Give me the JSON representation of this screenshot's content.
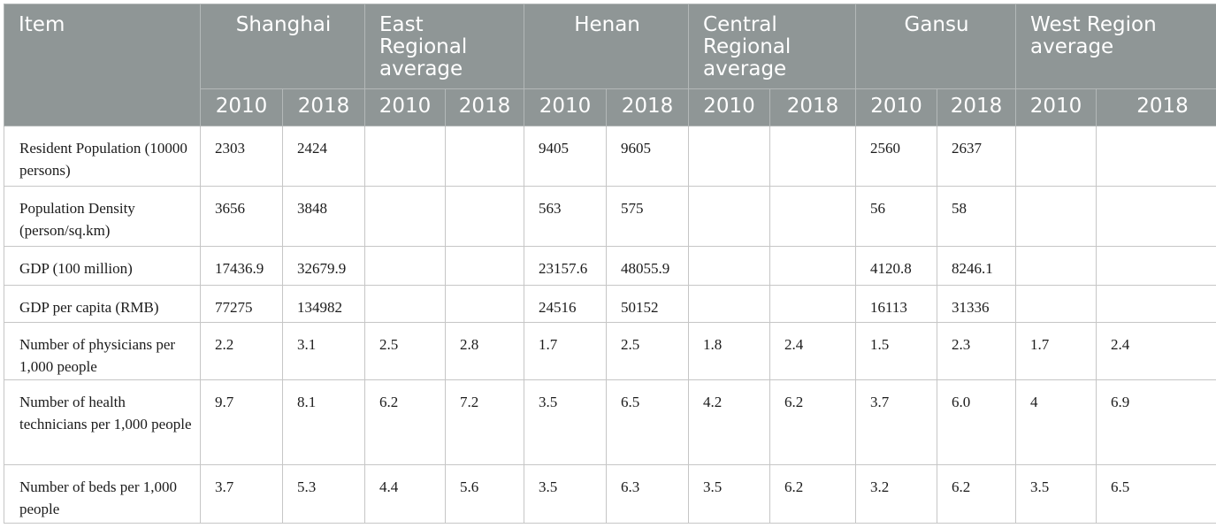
{
  "header": {
    "item_label": "Item",
    "groups": [
      "Shanghai",
      "East Regional average",
      "Henan",
      "Central Regional average",
      "Gansu",
      "West Region average"
    ],
    "years": [
      "2010",
      "2018",
      "2010",
      "2018",
      "2010",
      "2018",
      "2010",
      "2018",
      "2010",
      "2018",
      "2010",
      "2018"
    ]
  },
  "rows": [
    {
      "label": "Resident Population (10000 persons)",
      "values": [
        "2303",
        "2424",
        "",
        "",
        "9405",
        "9605",
        "",
        "",
        "2560",
        "2637",
        "",
        ""
      ]
    },
    {
      "label": "Population Density (person/sq.km)",
      "values": [
        "3656",
        "3848",
        "",
        "",
        "563",
        "575",
        "",
        "",
        "56",
        "58",
        "",
        ""
      ]
    },
    {
      "label": "GDP (100 million)",
      "values": [
        "17436.9",
        "32679.9",
        "",
        "",
        "23157.6",
        "48055.9",
        "",
        "",
        "4120.8",
        "8246.1",
        "",
        ""
      ]
    },
    {
      "label": "GDP per capita (RMB)",
      "values": [
        "77275",
        "134982",
        "",
        "",
        "24516",
        "50152",
        "",
        "",
        "16113",
        "31336",
        "",
        ""
      ]
    },
    {
      "label": "Number of physicians per 1,000 people",
      "values": [
        "2.2",
        "3.1",
        "2.5",
        "2.8",
        "1.7",
        "2.5",
        "1.8",
        "2.4",
        "1.5",
        "2.3",
        "1.7",
        "2.4"
      ]
    },
    {
      "label": "Number of health technicians per 1,000 people",
      "values": [
        "9.7",
        "8.1",
        "6.2",
        "7.2",
        "3.5",
        "6.5",
        "4.2",
        "6.2",
        "3.7",
        "6.0",
        "4",
        "6.9"
      ]
    },
    {
      "label": "Number of beds per 1,000 people",
      "values": [
        "3.7",
        "5.3",
        "4.4",
        "5.6",
        "3.5",
        "6.3",
        "3.5",
        "6.2",
        "3.2",
        "6.2",
        "3.5",
        "6.5"
      ]
    }
  ]
}
